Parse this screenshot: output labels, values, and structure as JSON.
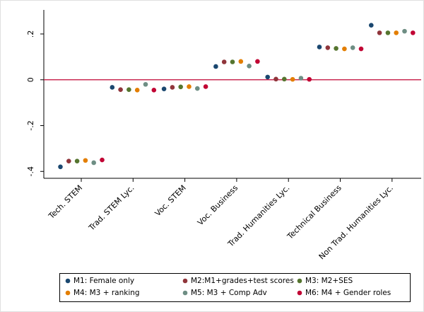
{
  "chart_data": {
    "type": "dot",
    "categories": [
      "Tech. STEM",
      "Trad. STEM Lyc.",
      "Voc. STEM",
      "Voc. Business",
      "Trad. Humanities Lyc.",
      "Technical Business",
      "Non Trad. Humanities Lyc."
    ],
    "series": [
      {
        "name": "M1: Female only",
        "color": "#1a476f",
        "values": [
          -0.38,
          -0.033,
          -0.04,
          0.058,
          0.012,
          0.143,
          0.238
        ]
      },
      {
        "name": "M2:M1+grades+test scores",
        "color": "#90353b",
        "values": [
          -0.355,
          -0.043,
          -0.033,
          0.078,
          0.003,
          0.14,
          0.205
        ]
      },
      {
        "name": "M3: M2+SES",
        "color": "#55752f",
        "values": [
          -0.355,
          -0.043,
          -0.031,
          0.078,
          0.003,
          0.137,
          0.205
        ]
      },
      {
        "name": "M4: M3 + ranking",
        "color": "#e37e00",
        "values": [
          -0.352,
          -0.045,
          -0.03,
          0.08,
          0.002,
          0.135,
          0.205
        ]
      },
      {
        "name": "M5: M3 + Comp Adv",
        "color": "#6e8e84",
        "values": [
          -0.362,
          -0.02,
          -0.038,
          0.06,
          0.007,
          0.14,
          0.212
        ]
      },
      {
        "name": "M6: M4 + Gender roles",
        "color": "#c10534",
        "values": [
          -0.35,
          -0.045,
          -0.03,
          0.08,
          0.002,
          0.135,
          0.205
        ]
      }
    ],
    "ylim": [
      -0.43,
      0.305
    ],
    "yticks": [
      {
        "value": 0.2,
        "label": ".2"
      },
      0,
      {
        "value": -0.2,
        "label": "-.2"
      },
      {
        "value": -0.4,
        "label": "-.4"
      }
    ],
    "hline": 0,
    "hline_color": "#c10534",
    "legend": "bottom",
    "grid": false
  }
}
